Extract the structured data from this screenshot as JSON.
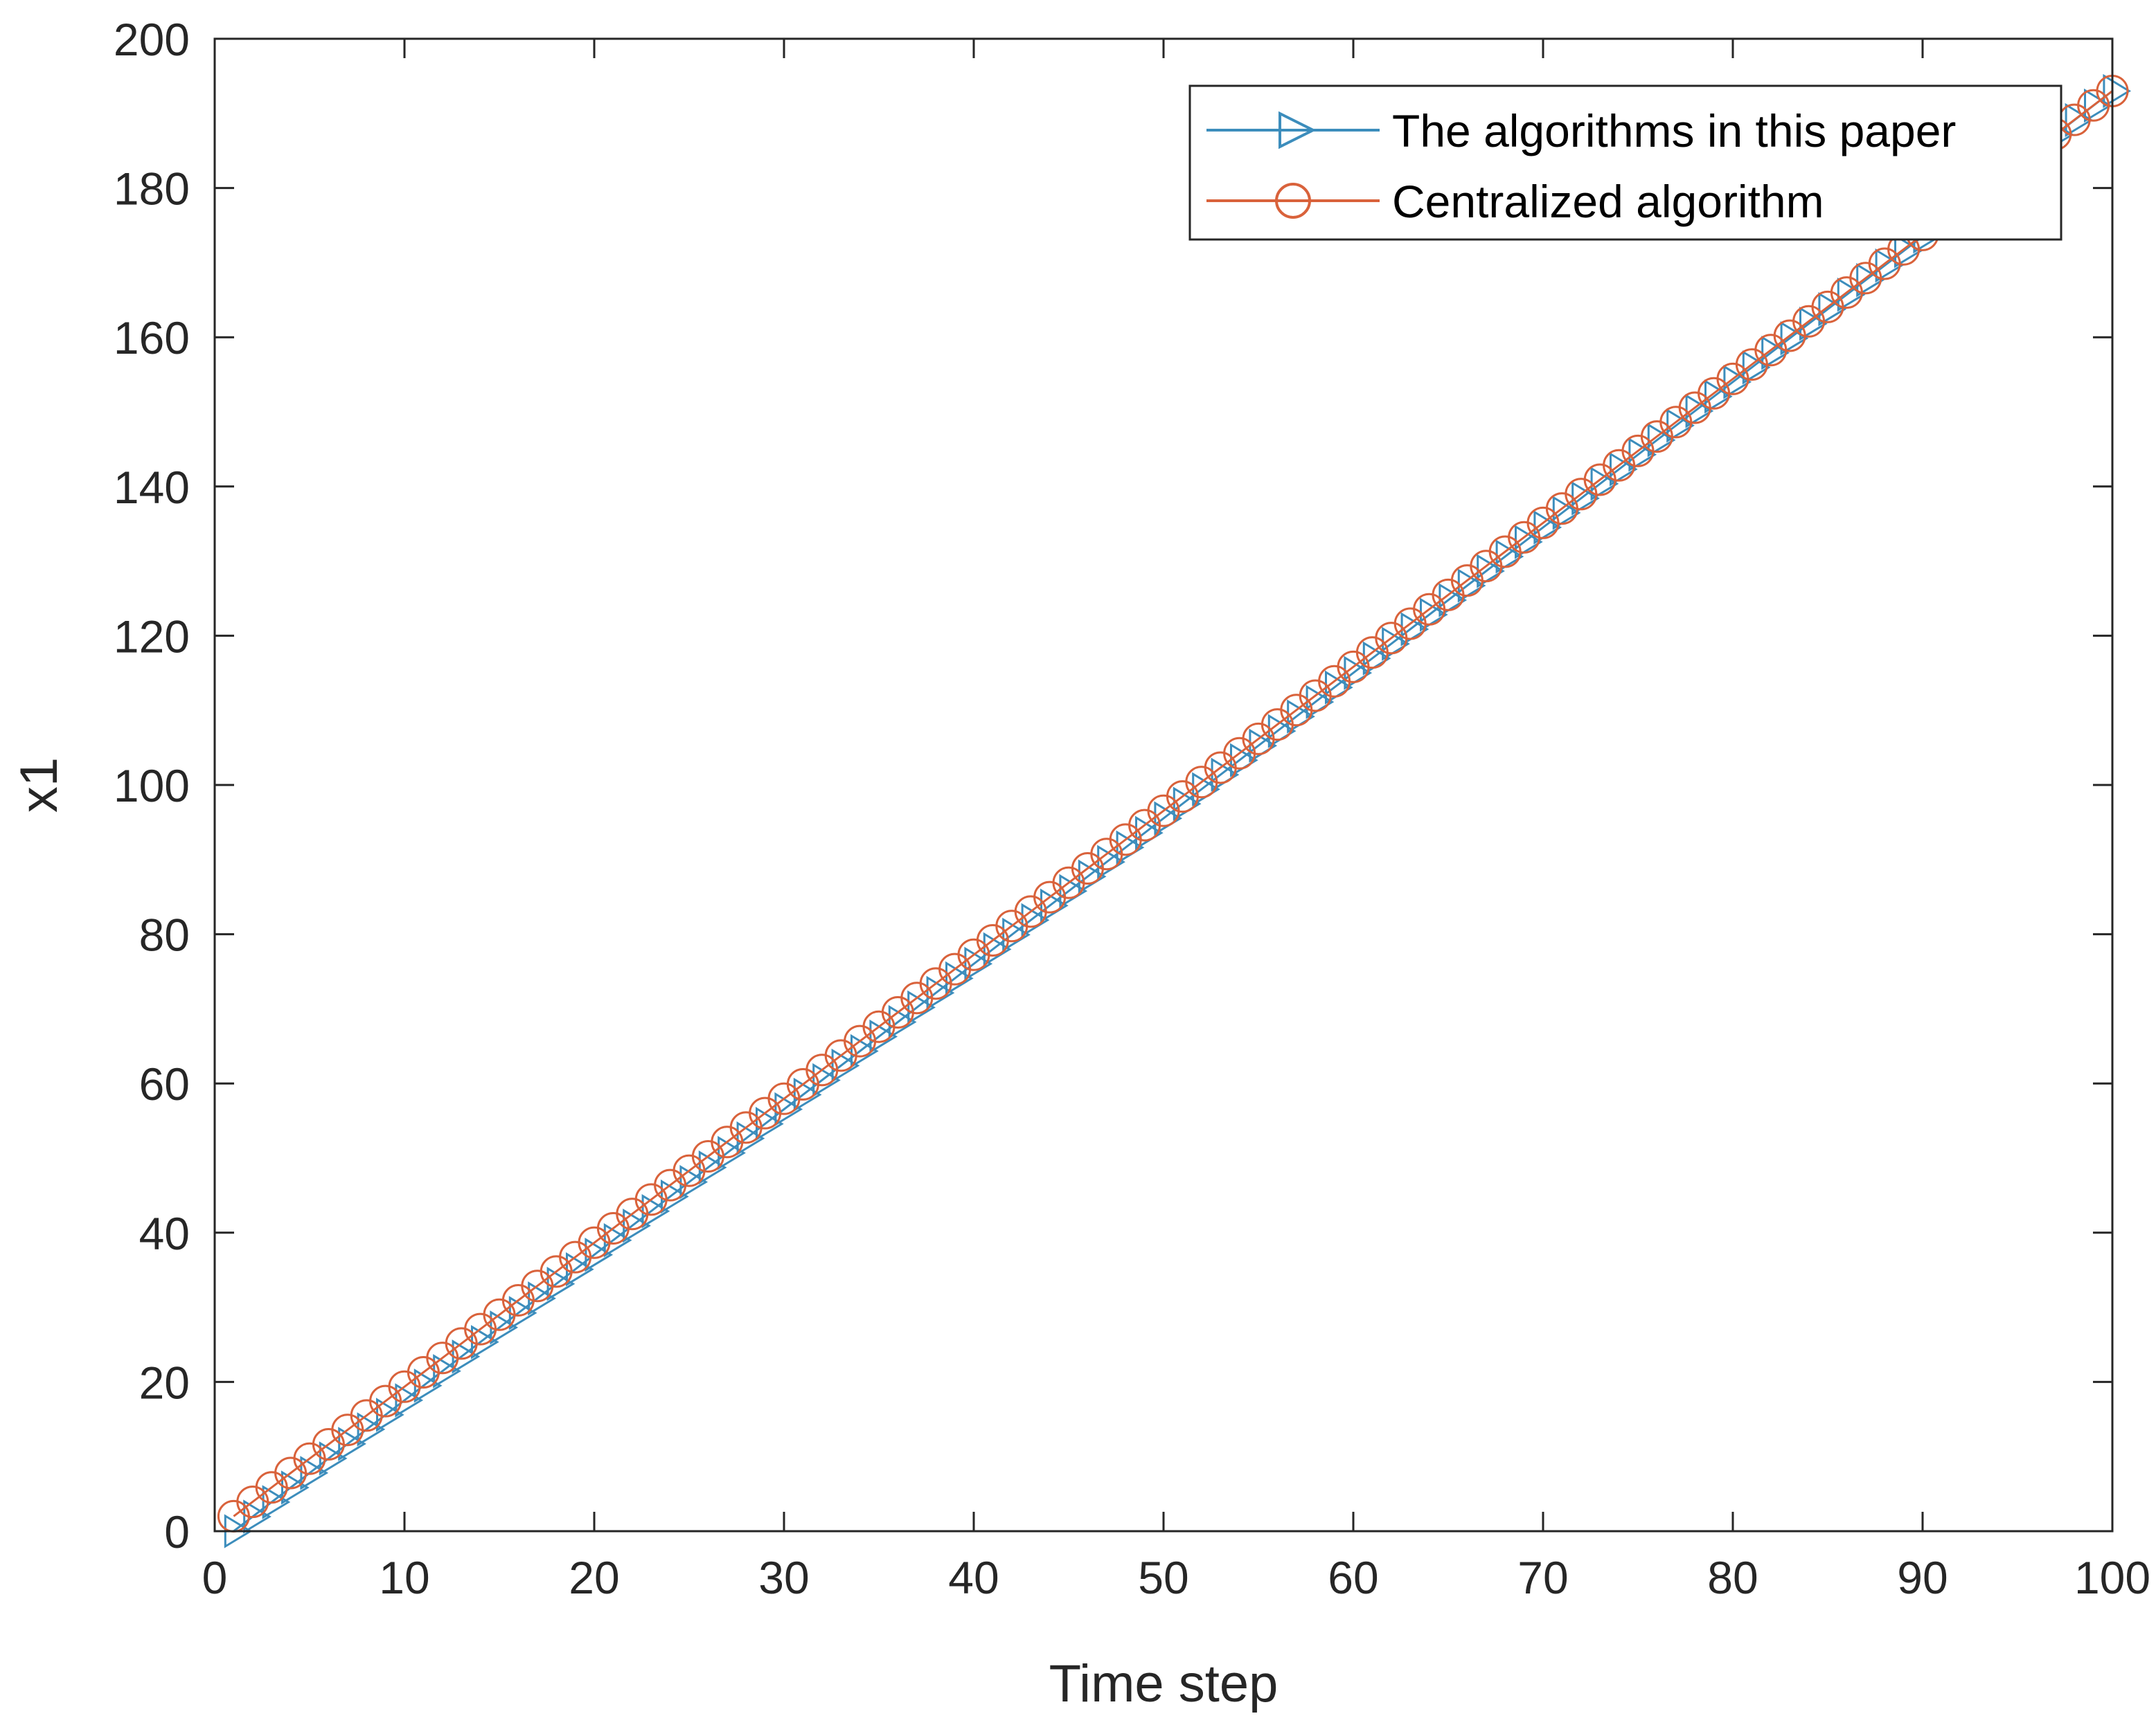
{
  "chart_data": {
    "type": "line",
    "xlabel": "Time step",
    "ylabel": "x1",
    "xlim": [
      0,
      100
    ],
    "ylim": [
      0,
      200
    ],
    "xticks": [
      0,
      10,
      20,
      30,
      40,
      50,
      60,
      70,
      80,
      90,
      100
    ],
    "yticks": [
      0,
      20,
      40,
      60,
      80,
      100,
      120,
      140,
      160,
      180,
      200
    ],
    "grid": false,
    "legend_position": "top-right",
    "series": [
      {
        "name": "The algorithms in this paper",
        "color": "#3C8DBC",
        "marker": "triangle-right",
        "x_start": 1,
        "x_end": 100,
        "x_step": 1,
        "y_start": 0,
        "y_end": 193
      },
      {
        "name": "Centralized algorithm",
        "color": "#D9623B",
        "marker": "circle",
        "x_start": 1,
        "x_end": 100,
        "x_step": 1,
        "y_start": 2,
        "y_end": 193
      }
    ]
  }
}
